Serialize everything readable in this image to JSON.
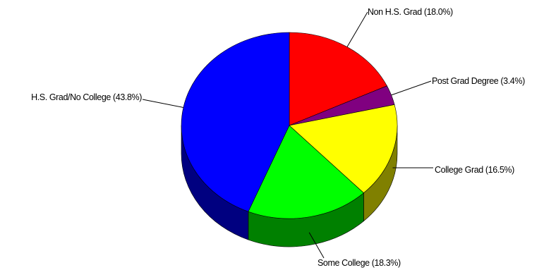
{
  "chart_data": {
    "type": "pie",
    "style": "3d",
    "categories": [
      "Non H.S. Grad",
      "Post Grad Degree",
      "College Grad",
      "Some College",
      "H.S. Grad/No College"
    ],
    "values": [
      18.0,
      3.4,
      16.5,
      18.3,
      43.8
    ],
    "unit": "%",
    "labels": [
      "Non H.S. Grad (18.0%)",
      "Post Grad Degree (3.4%)",
      "College Grad (16.5%)",
      "Some College (18.3%)",
      "H.S. Grad/No College (43.8%)"
    ],
    "colors": [
      "#ff0000",
      "#800080",
      "#ffff00",
      "#00ff00",
      "#0000ff"
    ],
    "side_colors": [
      "#800000",
      "#400040",
      "#808000",
      "#008000",
      "#000080"
    ],
    "start": "12 o'clock",
    "direction": "clockwise",
    "legend": "none"
  }
}
